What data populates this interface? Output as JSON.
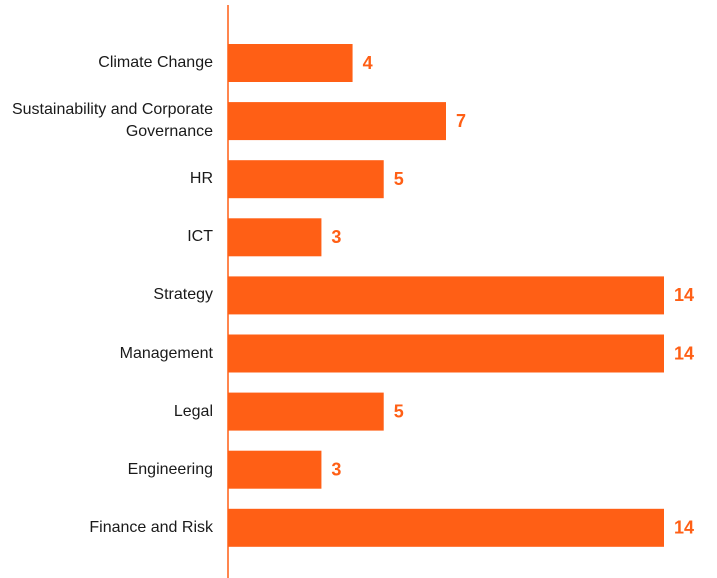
{
  "chart_data": {
    "type": "barh",
    "categories": [
      "Climate Change",
      "Sustainability and Corporate Governance",
      "HR",
      "ICT",
      "Strategy",
      "Management",
      "Legal",
      "Engineering",
      "Finance and Risk"
    ],
    "values": [
      4,
      7,
      5,
      3,
      14,
      14,
      5,
      3,
      14
    ],
    "color": "#ff5f15"
  }
}
